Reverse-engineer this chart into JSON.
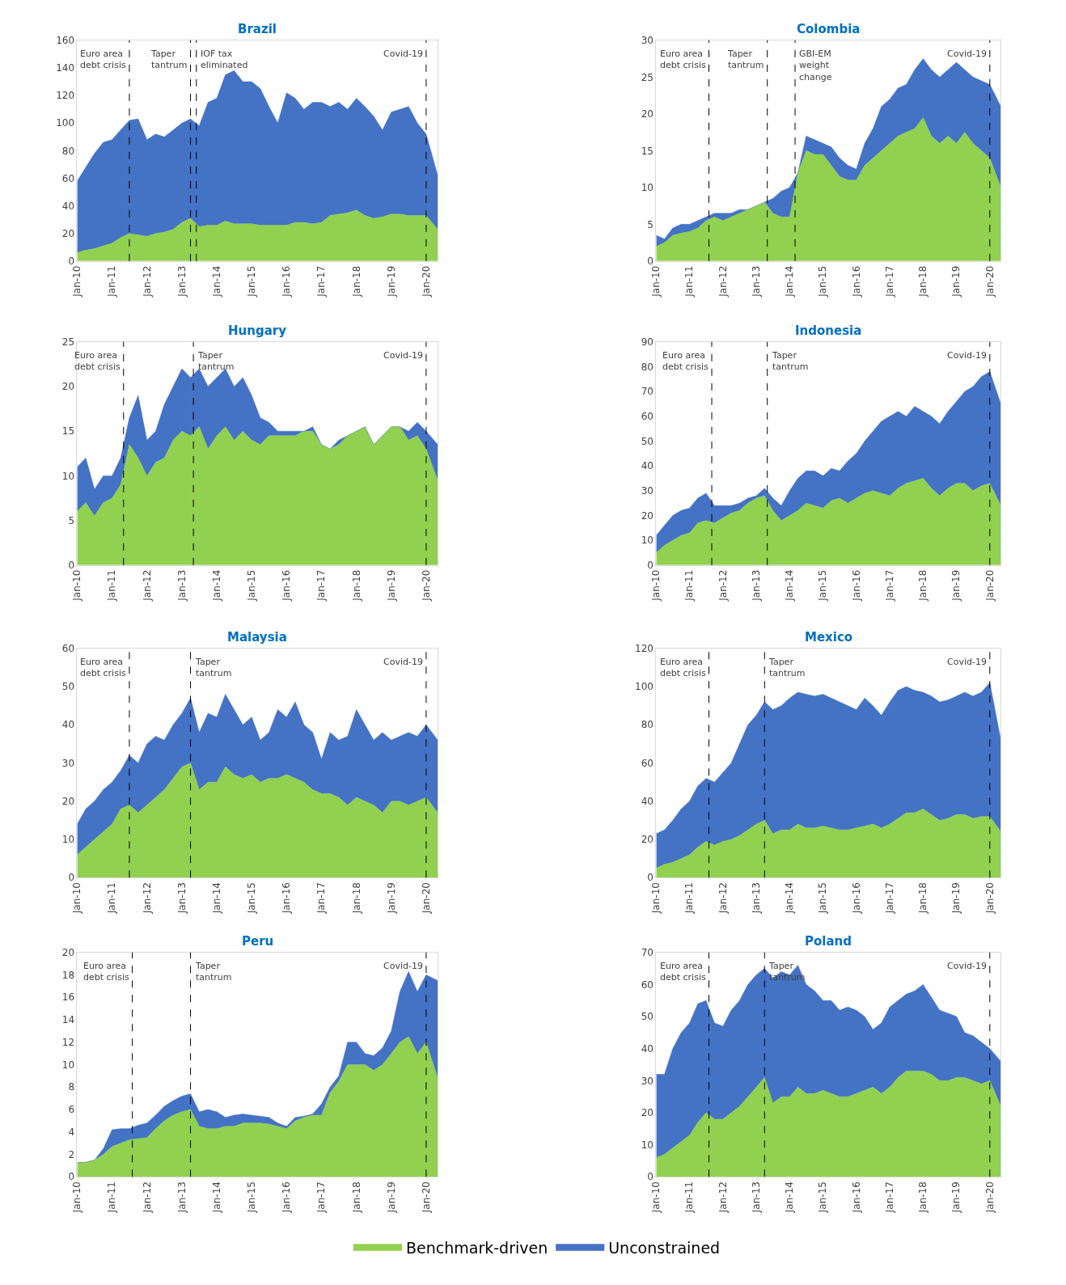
{
  "chart_data": [
    {
      "type": "area",
      "title": "Brazil",
      "stacked": true,
      "legend": "bottom",
      "xlim": [
        "2010-01",
        "2020-05"
      ],
      "ylim": [
        0,
        160
      ],
      "yticks": [
        0,
        20,
        40,
        60,
        80,
        100,
        120,
        140,
        160
      ],
      "xticks": [
        {
          "value": "2010-01",
          "label": "Jan-10"
        },
        {
          "value": "2011-01",
          "label": "Jan-11"
        },
        {
          "value": "2012-01",
          "label": "Jan-12"
        },
        {
          "value": "2013-01",
          "label": "Jan-13"
        },
        {
          "value": "2014-01",
          "label": "Jan-14"
        },
        {
          "value": "2015-01",
          "label": "Jan-15"
        },
        {
          "value": "2016-01",
          "label": "Jan-16"
        },
        {
          "value": "2017-01",
          "label": "Jan-17"
        },
        {
          "value": "2018-01",
          "label": "Jan-18"
        },
        {
          "value": "2019-01",
          "label": "Jan-19"
        },
        {
          "value": "2020-01",
          "label": "Jan-20"
        }
      ],
      "x": [
        "2010-01",
        "2010-04",
        "2010-07",
        "2010-10",
        "2011-01",
        "2011-04",
        "2011-07",
        "2011-10",
        "2012-01",
        "2012-04",
        "2012-07",
        "2012-10",
        "2013-01",
        "2013-04",
        "2013-07",
        "2013-10",
        "2014-01",
        "2014-04",
        "2014-07",
        "2014-10",
        "2015-01",
        "2015-04",
        "2015-07",
        "2015-10",
        "2016-01",
        "2016-04",
        "2016-07",
        "2016-10",
        "2017-01",
        "2017-04",
        "2017-07",
        "2017-10",
        "2018-01",
        "2018-04",
        "2018-07",
        "2018-10",
        "2019-01",
        "2019-04",
        "2019-07",
        "2019-10",
        "2020-01",
        "2020-05"
      ],
      "series": [
        {
          "name": "Benchmark-driven",
          "color": "#92d050",
          "values": [
            6,
            8,
            9,
            11,
            13,
            17,
            20,
            19,
            18,
            20,
            21,
            23,
            28,
            31,
            25,
            26,
            26,
            29,
            27,
            27,
            27,
            26,
            26,
            26,
            26,
            28,
            28,
            27,
            28,
            33,
            34,
            35,
            37,
            33,
            31,
            32,
            34,
            34,
            33,
            33,
            33,
            23
          ]
        },
        {
          "name": "Unconstrained",
          "color": "#4472c4",
          "values": [
            52,
            60,
            69,
            75,
            75,
            78,
            82,
            84,
            70,
            72,
            69,
            72,
            72,
            72,
            73,
            89,
            92,
            106,
            111,
            103,
            103,
            99,
            86,
            74,
            96,
            90,
            82,
            88,
            87,
            79,
            81,
            75,
            81,
            79,
            74,
            63,
            74,
            76,
            79,
            67,
            59,
            39
          ]
        }
      ],
      "ref_lines": [
        {
          "axis": "x",
          "value": "2011-07",
          "label": "Euro area\ndebt crisis",
          "color": "#000000",
          "line_style": "dashed"
        },
        {
          "axis": "x",
          "value": "2013-04",
          "label": "Taper\ntantrum",
          "color": "#000000",
          "line_style": "dashed"
        },
        {
          "axis": "x",
          "value": "2013-06",
          "label": "IOF tax\neliminated",
          "color": "#000000",
          "line_style": "dashed"
        },
        {
          "axis": "x",
          "value": "2020-01",
          "label": "Covid-19",
          "color": "#000000",
          "line_style": "dashed"
        }
      ]
    },
    {
      "type": "area",
      "title": "Colombia",
      "stacked": true,
      "xlim": [
        "2010-01",
        "2020-05"
      ],
      "ylim": [
        0,
        30
      ],
      "yticks": [
        0,
        5,
        10,
        15,
        20,
        25,
        30
      ],
      "xticks": [
        {
          "value": "2010-01",
          "label": "Jan-10"
        },
        {
          "value": "2011-01",
          "label": "Jan-11"
        },
        {
          "value": "2012-01",
          "label": "Jan-12"
        },
        {
          "value": "2013-01",
          "label": "Jan-13"
        },
        {
          "value": "2014-01",
          "label": "Jan-14"
        },
        {
          "value": "2015-01",
          "label": "Jan-15"
        },
        {
          "value": "2016-01",
          "label": "Jan-16"
        },
        {
          "value": "2017-01",
          "label": "Jan-17"
        },
        {
          "value": "2018-01",
          "label": "Jan-18"
        },
        {
          "value": "2019-01",
          "label": "Jan-19"
        },
        {
          "value": "2020-01",
          "label": "Jan-20"
        }
      ],
      "x": [
        "2010-01",
        "2010-04",
        "2010-07",
        "2010-10",
        "2011-01",
        "2011-04",
        "2011-07",
        "2011-10",
        "2012-01",
        "2012-04",
        "2012-07",
        "2012-10",
        "2013-01",
        "2013-04",
        "2013-07",
        "2013-10",
        "2014-01",
        "2014-04",
        "2014-07",
        "2014-10",
        "2015-01",
        "2015-04",
        "2015-07",
        "2015-10",
        "2016-01",
        "2016-04",
        "2016-07",
        "2016-10",
        "2017-01",
        "2017-04",
        "2017-07",
        "2017-10",
        "2018-01",
        "2018-04",
        "2018-07",
        "2018-10",
        "2019-01",
        "2019-04",
        "2019-07",
        "2019-10",
        "2020-01",
        "2020-05"
      ],
      "series": [
        {
          "color": "#92d050",
          "values": [
            2,
            2.5,
            3.5,
            3.8,
            4,
            4.5,
            5.5,
            6,
            5.5,
            6,
            6.5,
            7,
            7.5,
            8,
            6.5,
            6,
            6,
            12,
            15,
            14.5,
            14.5,
            13,
            11.5,
            11,
            11,
            13,
            14,
            15,
            16,
            17,
            17.5,
            18,
            19.5,
            17,
            16,
            17,
            16,
            17.5,
            16,
            15,
            14,
            10
          ]
        },
        {
          "color": "#4472c4",
          "values": [
            1.5,
            0.5,
            1,
            1.2,
            1,
            1,
            0.5,
            0.5,
            1,
            0.5,
            0.5,
            0,
            0,
            0,
            2,
            3.5,
            4,
            0,
            2,
            2,
            1.5,
            2.5,
            2.5,
            2,
            1.5,
            3,
            4,
            6,
            6,
            6.5,
            6.5,
            8,
            8,
            9,
            9,
            9,
            11,
            8.5,
            9,
            9.5,
            10,
            11
          ]
        }
      ],
      "ref_lines": [
        {
          "axis": "x",
          "value": "2011-08",
          "label": "Euro area\ndebt crisis",
          "color": "#000000",
          "line_style": "dashed"
        },
        {
          "axis": "x",
          "value": "2013-05",
          "label": "Taper\ntantrum",
          "color": "#000000",
          "line_style": "dashed"
        },
        {
          "axis": "x",
          "value": "2014-03",
          "label": "GBI-EM\nweight\nchange",
          "color": "#000000",
          "line_style": "dashed"
        },
        {
          "axis": "x",
          "value": "2020-01",
          "label": "Covid-19",
          "color": "#000000",
          "line_style": "dashed"
        }
      ]
    },
    {
      "type": "area",
      "title": "Hungary",
      "stacked": true,
      "xlim": [
        "2010-01",
        "2020-05"
      ],
      "ylim": [
        0,
        25
      ],
      "yticks": [
        0,
        5,
        10,
        15,
        20,
        25
      ],
      "xticks": [
        {
          "value": "2010-01",
          "label": "Jan-10"
        },
        {
          "value": "2011-01",
          "label": "Jan-11"
        },
        {
          "value": "2012-01",
          "label": "Jan-12"
        },
        {
          "value": "2013-01",
          "label": "Jan-13"
        },
        {
          "value": "2014-01",
          "label": "Jan-14"
        },
        {
          "value": "2015-01",
          "label": "Jan-15"
        },
        {
          "value": "2016-01",
          "label": "Jan-16"
        },
        {
          "value": "2017-01",
          "label": "Jan-17"
        },
        {
          "value": "2018-01",
          "label": "Jan-18"
        },
        {
          "value": "2019-01",
          "label": "Jan-19"
        },
        {
          "value": "2020-01",
          "label": "Jan-20"
        }
      ],
      "x": [
        "2010-01",
        "2010-04",
        "2010-07",
        "2010-10",
        "2011-01",
        "2011-04",
        "2011-07",
        "2011-10",
        "2012-01",
        "2012-04",
        "2012-07",
        "2012-10",
        "2013-01",
        "2013-04",
        "2013-07",
        "2013-10",
        "2014-01",
        "2014-04",
        "2014-07",
        "2014-10",
        "2015-01",
        "2015-04",
        "2015-07",
        "2015-10",
        "2016-01",
        "2016-04",
        "2016-07",
        "2016-10",
        "2017-01",
        "2017-04",
        "2017-07",
        "2017-10",
        "2018-01",
        "2018-04",
        "2018-07",
        "2018-10",
        "2019-01",
        "2019-04",
        "2019-07",
        "2019-10",
        "2020-01",
        "2020-05"
      ],
      "series": [
        {
          "color": "#92d050",
          "values": [
            6,
            7,
            5.5,
            7,
            7.5,
            9,
            13.5,
            12,
            10,
            11.5,
            12,
            14,
            15,
            14.5,
            15.5,
            13,
            14.5,
            15.5,
            14,
            15,
            14,
            13.5,
            14.5,
            14.5,
            14.5,
            14.5,
            15,
            15,
            13.5,
            13,
            13.5,
            14.5,
            15,
            15.5,
            13.5,
            14.5,
            15.5,
            15.5,
            14,
            14.5,
            13,
            9.5
          ]
        },
        {
          "color": "#4472c4",
          "values": [
            5,
            5,
            3,
            3,
            2.5,
            3,
            3,
            7,
            4,
            3.5,
            6,
            6,
            7,
            6.5,
            6.5,
            7,
            6.5,
            6.5,
            6,
            6,
            5,
            3,
            1.5,
            0.5,
            0.5,
            0.5,
            0,
            0.5,
            0,
            0,
            0.5,
            0,
            0,
            0,
            0,
            0,
            0,
            0,
            1,
            1.5,
            2,
            4
          ]
        }
      ],
      "ref_lines": [
        {
          "axis": "x",
          "value": "2011-05",
          "label": "Euro area\ndebt crisis",
          "color": "#000000",
          "line_style": "dashed"
        },
        {
          "axis": "x",
          "value": "2013-05",
          "label": "Taper\ntantrum",
          "color": "#000000",
          "line_style": "dashed"
        },
        {
          "axis": "x",
          "value": "2020-01",
          "label": "Covid-19",
          "color": "#000000",
          "line_style": "dashed"
        }
      ]
    },
    {
      "type": "area",
      "title": "Indonesia",
      "stacked": true,
      "xlim": [
        "2010-01",
        "2020-05"
      ],
      "ylim": [
        0,
        90
      ],
      "yticks": [
        0,
        10,
        20,
        30,
        40,
        50,
        60,
        70,
        80,
        90
      ],
      "xticks": [
        {
          "value": "2010-01",
          "label": "Jan-10"
        },
        {
          "value": "2011-01",
          "label": "Jan-11"
        },
        {
          "value": "2012-01",
          "label": "Jan-12"
        },
        {
          "value": "2013-01",
          "label": "Jan-13"
        },
        {
          "value": "2014-01",
          "label": "Jan-14"
        },
        {
          "value": "2015-01",
          "label": "Jan-15"
        },
        {
          "value": "2016-01",
          "label": "Jan-16"
        },
        {
          "value": "2017-01",
          "label": "Jan-17"
        },
        {
          "value": "2018-01",
          "label": "Jan-18"
        },
        {
          "value": "2019-01",
          "label": "Jan-19"
        },
        {
          "value": "2020-01",
          "label": "Jan-20"
        }
      ],
      "x": [
        "2010-01",
        "2010-04",
        "2010-07",
        "2010-10",
        "2011-01",
        "2011-04",
        "2011-07",
        "2011-10",
        "2012-01",
        "2012-04",
        "2012-07",
        "2012-10",
        "2013-01",
        "2013-04",
        "2013-07",
        "2013-10",
        "2014-01",
        "2014-04",
        "2014-07",
        "2014-10",
        "2015-01",
        "2015-04",
        "2015-07",
        "2015-10",
        "2016-01",
        "2016-04",
        "2016-07",
        "2016-10",
        "2017-01",
        "2017-04",
        "2017-07",
        "2017-10",
        "2018-01",
        "2018-04",
        "2018-07",
        "2018-10",
        "2019-01",
        "2019-04",
        "2019-07",
        "2019-10",
        "2020-01",
        "2020-05"
      ],
      "series": [
        {
          "color": "#92d050",
          "values": [
            5,
            8,
            10,
            12,
            13,
            17,
            18,
            17,
            19,
            21,
            22,
            25,
            27,
            28,
            22,
            18,
            20,
            22,
            25,
            24,
            23,
            26,
            27,
            25,
            27,
            29,
            30,
            29,
            28,
            31,
            33,
            34,
            35,
            31,
            28,
            31,
            33,
            33,
            30,
            32,
            33,
            24
          ]
        },
        {
          "color": "#4472c4",
          "values": [
            7,
            8,
            10,
            10,
            10,
            10,
            11,
            7,
            5,
            3,
            3,
            2,
            1,
            3,
            5,
            6,
            10,
            13,
            13,
            14,
            13,
            13,
            11,
            17,
            18,
            21,
            24,
            29,
            32,
            31,
            27,
            30,
            27,
            29,
            29,
            31,
            33,
            37,
            42,
            44,
            45,
            41
          ]
        }
      ],
      "ref_lines": [
        {
          "axis": "x",
          "value": "2011-09",
          "label": "Euro area\ndebt crisis",
          "color": "#000000",
          "line_style": "dashed"
        },
        {
          "axis": "x",
          "value": "2013-05",
          "label": "Taper\ntantrum",
          "color": "#000000",
          "line_style": "dashed"
        },
        {
          "axis": "x",
          "value": "2020-01",
          "label": "Covid-19",
          "color": "#000000",
          "line_style": "dashed"
        }
      ]
    },
    {
      "type": "area",
      "title": "Malaysia",
      "stacked": true,
      "xlim": [
        "2010-01",
        "2020-05"
      ],
      "ylim": [
        0,
        60
      ],
      "yticks": [
        0,
        10,
        20,
        30,
        40,
        50,
        60
      ],
      "xticks": [
        {
          "value": "2010-01",
          "label": "Jan-10"
        },
        {
          "value": "2011-01",
          "label": "Jan-11"
        },
        {
          "value": "2012-01",
          "label": "Jan-12"
        },
        {
          "value": "2013-01",
          "label": "Jan-13"
        },
        {
          "value": "2014-01",
          "label": "Jan-14"
        },
        {
          "value": "2015-01",
          "label": "Jan-15"
        },
        {
          "value": "2016-01",
          "label": "Jan-16"
        },
        {
          "value": "2017-01",
          "label": "Jan-17"
        },
        {
          "value": "2018-01",
          "label": "Jan-18"
        },
        {
          "value": "2019-01",
          "label": "Jan-19"
        },
        {
          "value": "2020-01",
          "label": "Jan-20"
        }
      ],
      "x": [
        "2010-01",
        "2010-04",
        "2010-07",
        "2010-10",
        "2011-01",
        "2011-04",
        "2011-07",
        "2011-10",
        "2012-01",
        "2012-04",
        "2012-07",
        "2012-10",
        "2013-01",
        "2013-04",
        "2013-07",
        "2013-10",
        "2014-01",
        "2014-04",
        "2014-07",
        "2014-10",
        "2015-01",
        "2015-04",
        "2015-07",
        "2015-10",
        "2016-01",
        "2016-04",
        "2016-07",
        "2016-10",
        "2017-01",
        "2017-04",
        "2017-07",
        "2017-10",
        "2018-01",
        "2018-04",
        "2018-07",
        "2018-10",
        "2019-01",
        "2019-04",
        "2019-07",
        "2019-10",
        "2020-01",
        "2020-05"
      ],
      "series": [
        {
          "color": "#92d050",
          "values": [
            6,
            8,
            10,
            12,
            14,
            18,
            19,
            17,
            19,
            21,
            23,
            26,
            29,
            30,
            23,
            25,
            25,
            29,
            27,
            26,
            27,
            25,
            26,
            26,
            27,
            26,
            25,
            23,
            22,
            22,
            21,
            19,
            21,
            20,
            19,
            17,
            20,
            20,
            19,
            20,
            21,
            17
          ]
        },
        {
          "color": "#4472c4",
          "values": [
            8,
            10,
            10,
            11,
            11,
            10,
            13,
            13,
            16,
            16,
            13,
            14,
            14,
            17,
            15,
            18,
            17,
            19,
            17,
            14,
            15,
            11,
            12,
            18,
            15,
            20,
            15,
            15,
            9,
            16,
            15,
            18,
            23,
            20,
            17,
            21,
            16,
            17,
            19,
            17,
            19,
            19
          ]
        }
      ],
      "ref_lines": [
        {
          "axis": "x",
          "value": "2011-07",
          "label": "Euro area\ndebt crisis",
          "color": "#000000",
          "line_style": "dashed"
        },
        {
          "axis": "x",
          "value": "2013-04",
          "label": "Taper\ntantrum",
          "color": "#000000",
          "line_style": "dashed"
        },
        {
          "axis": "x",
          "value": "2020-01",
          "label": "Covid-19",
          "color": "#000000",
          "line_style": "dashed"
        }
      ]
    },
    {
      "type": "area",
      "title": "Mexico",
      "stacked": true,
      "xlim": [
        "2010-01",
        "2020-05"
      ],
      "ylim": [
        0,
        120
      ],
      "yticks": [
        0,
        20,
        40,
        60,
        80,
        100,
        120
      ],
      "xticks": [
        {
          "value": "2010-01",
          "label": "Jan-10"
        },
        {
          "value": "2011-01",
          "label": "Jan-11"
        },
        {
          "value": "2012-01",
          "label": "Jan-12"
        },
        {
          "value": "2013-01",
          "label": "Jan-13"
        },
        {
          "value": "2014-01",
          "label": "Jan-14"
        },
        {
          "value": "2015-01",
          "label": "Jan-15"
        },
        {
          "value": "2016-01",
          "label": "Jan-16"
        },
        {
          "value": "2017-01",
          "label": "Jan-17"
        },
        {
          "value": "2018-01",
          "label": "Jan-18"
        },
        {
          "value": "2019-01",
          "label": "Jan-19"
        },
        {
          "value": "2020-01",
          "label": "Jan-20"
        }
      ],
      "x": [
        "2010-01",
        "2010-04",
        "2010-07",
        "2010-10",
        "2011-01",
        "2011-04",
        "2011-07",
        "2011-10",
        "2012-01",
        "2012-04",
        "2012-07",
        "2012-10",
        "2013-01",
        "2013-04",
        "2013-07",
        "2013-10",
        "2014-01",
        "2014-04",
        "2014-07",
        "2014-10",
        "2015-01",
        "2015-04",
        "2015-07",
        "2015-10",
        "2016-01",
        "2016-04",
        "2016-07",
        "2016-10",
        "2017-01",
        "2017-04",
        "2017-07",
        "2017-10",
        "2018-01",
        "2018-04",
        "2018-07",
        "2018-10",
        "2019-01",
        "2019-04",
        "2019-07",
        "2019-10",
        "2020-01",
        "2020-05"
      ],
      "series": [
        {
          "color": "#92d050",
          "values": [
            5,
            7,
            8,
            10,
            12,
            16,
            19,
            17,
            19,
            20,
            22,
            25,
            28,
            30,
            23,
            25,
            25,
            28,
            26,
            26,
            27,
            26,
            25,
            25,
            26,
            27,
            28,
            26,
            28,
            31,
            34,
            34,
            36,
            33,
            30,
            31,
            33,
            33,
            31,
            32,
            32,
            24
          ]
        },
        {
          "color": "#4472c4",
          "values": [
            18,
            18,
            22,
            26,
            28,
            32,
            33,
            33,
            36,
            40,
            48,
            55,
            57,
            62,
            65,
            65,
            69,
            69,
            70,
            69,
            69,
            68,
            67,
            65,
            62,
            67,
            62,
            59,
            64,
            67,
            66,
            64,
            61,
            62,
            62,
            62,
            62,
            64,
            64,
            65,
            70,
            48
          ]
        }
      ],
      "ref_lines": [
        {
          "axis": "x",
          "value": "2011-08",
          "label": "Euro area\ndebt crisis",
          "color": "#000000",
          "line_style": "dashed"
        },
        {
          "axis": "x",
          "value": "2013-04",
          "label": "Taper\ntantrum",
          "color": "#000000",
          "line_style": "dashed"
        },
        {
          "axis": "x",
          "value": "2020-01",
          "label": "Covid-19",
          "color": "#000000",
          "line_style": "dashed"
        }
      ]
    },
    {
      "type": "area",
      "title": "Peru",
      "stacked": true,
      "xlim": [
        "2010-01",
        "2020-05"
      ],
      "ylim": [
        0,
        20
      ],
      "yticks": [
        0,
        2,
        4,
        6,
        8,
        10,
        12,
        14,
        16,
        18,
        20
      ],
      "xticks": [
        {
          "value": "2010-01",
          "label": "Jan-10"
        },
        {
          "value": "2011-01",
          "label": "Jan-11"
        },
        {
          "value": "2012-01",
          "label": "Jan-12"
        },
        {
          "value": "2013-01",
          "label": "Jan-13"
        },
        {
          "value": "2014-01",
          "label": "Jan-14"
        },
        {
          "value": "2015-01",
          "label": "Jan-15"
        },
        {
          "value": "2016-01",
          "label": "Jan-16"
        },
        {
          "value": "2017-01",
          "label": "Jan-17"
        },
        {
          "value": "2018-01",
          "label": "Jan-18"
        },
        {
          "value": "2019-01",
          "label": "Jan-19"
        },
        {
          "value": "2020-01",
          "label": "Jan-20"
        }
      ],
      "x": [
        "2010-01",
        "2010-04",
        "2010-07",
        "2010-10",
        "2011-01",
        "2011-04",
        "2011-07",
        "2011-10",
        "2012-01",
        "2012-04",
        "2012-07",
        "2012-10",
        "2013-01",
        "2013-04",
        "2013-07",
        "2013-10",
        "2014-01",
        "2014-04",
        "2014-07",
        "2014-10",
        "2015-01",
        "2015-04",
        "2015-07",
        "2015-10",
        "2016-01",
        "2016-04",
        "2016-07",
        "2016-10",
        "2017-01",
        "2017-04",
        "2017-07",
        "2017-10",
        "2018-01",
        "2018-04",
        "2018-07",
        "2018-10",
        "2019-01",
        "2019-04",
        "2019-07",
        "2019-10",
        "2020-01",
        "2020-05"
      ],
      "series": [
        {
          "color": "#92d050",
          "values": [
            1.3,
            1.3,
            1.5,
            2,
            2.7,
            3,
            3.3,
            3.4,
            3.5,
            4.3,
            5,
            5.5,
            5.8,
            6,
            4.5,
            4.3,
            4.3,
            4.5,
            4.5,
            4.8,
            4.8,
            4.8,
            4.7,
            4.5,
            4.3,
            5,
            5.3,
            5.5,
            5.5,
            7.5,
            8.5,
            10,
            10,
            10,
            9.5,
            10,
            11,
            12,
            12.5,
            11,
            12,
            8.8
          ]
        },
        {
          "color": "#4472c4",
          "values": [
            0,
            0,
            0,
            0.5,
            1.5,
            1.3,
            1,
            1.2,
            1.3,
            1.2,
            1.3,
            1.3,
            1.4,
            1.4,
            1.3,
            1.7,
            1.5,
            0.8,
            1,
            0.8,
            0.7,
            0.6,
            0.6,
            0.3,
            0.2,
            0.3,
            0.1,
            0.1,
            1,
            0.5,
            0.5,
            2,
            2,
            1,
            1.3,
            1.5,
            2,
            4.5,
            5.8,
            5.5,
            6,
            8.7
          ]
        }
      ],
      "ref_lines": [
        {
          "axis": "x",
          "value": "2011-08",
          "label": "Euro area\ndebt crisis",
          "color": "#000000",
          "line_style": "dashed"
        },
        {
          "axis": "x",
          "value": "2013-04",
          "label": "Taper\ntantrum",
          "color": "#000000",
          "line_style": "dashed"
        },
        {
          "axis": "x",
          "value": "2020-01",
          "label": "Covid-19",
          "color": "#000000",
          "line_style": "dashed"
        }
      ]
    },
    {
      "type": "area",
      "title": "Poland",
      "stacked": true,
      "xlim": [
        "2010-01",
        "2020-05"
      ],
      "ylim": [
        0,
        70
      ],
      "yticks": [
        0,
        10,
        20,
        30,
        40,
        50,
        60,
        70
      ],
      "xticks": [
        {
          "value": "2010-01",
          "label": "Jan-10"
        },
        {
          "value": "2011-01",
          "label": "Jan-11"
        },
        {
          "value": "2012-01",
          "label": "Jan-12"
        },
        {
          "value": "2013-01",
          "label": "Jan-13"
        },
        {
          "value": "2014-01",
          "label": "Jan-14"
        },
        {
          "value": "2015-01",
          "label": "Jan-15"
        },
        {
          "value": "2016-01",
          "label": "Jan-16"
        },
        {
          "value": "2017-01",
          "label": "Jan-17"
        },
        {
          "value": "2018-01",
          "label": "Jan-18"
        },
        {
          "value": "2019-01",
          "label": "Jan-19"
        },
        {
          "value": "2020-01",
          "label": "Jan-20"
        }
      ],
      "x": [
        "2010-01",
        "2010-04",
        "2010-07",
        "2010-10",
        "2011-01",
        "2011-04",
        "2011-07",
        "2011-10",
        "2012-01",
        "2012-04",
        "2012-07",
        "2012-10",
        "2013-01",
        "2013-04",
        "2013-07",
        "2013-10",
        "2014-01",
        "2014-04",
        "2014-07",
        "2014-10",
        "2015-01",
        "2015-04",
        "2015-07",
        "2015-10",
        "2016-01",
        "2016-04",
        "2016-07",
        "2016-10",
        "2017-01",
        "2017-04",
        "2017-07",
        "2017-10",
        "2018-01",
        "2018-04",
        "2018-07",
        "2018-10",
        "2019-01",
        "2019-04",
        "2019-07",
        "2019-10",
        "2020-01",
        "2020-05"
      ],
      "series": [
        {
          "color": "#92d050",
          "values": [
            6,
            7,
            9,
            11,
            13,
            17,
            20,
            18,
            18,
            20,
            22,
            25,
            28,
            31,
            23,
            25,
            25,
            28,
            26,
            26,
            27,
            26,
            25,
            25,
            26,
            27,
            28,
            26,
            28,
            31,
            33,
            33,
            33,
            32,
            30,
            30,
            31,
            31,
            30,
            29,
            30,
            22
          ]
        },
        {
          "color": "#4472c4",
          "values": [
            26,
            25,
            31,
            34,
            35,
            37,
            35,
            30,
            29,
            32,
            33,
            35,
            35,
            34,
            39,
            39,
            38,
            38,
            34,
            32,
            28,
            29,
            27,
            28,
            26,
            23,
            18,
            22,
            25,
            24,
            24,
            25,
            27,
            24,
            22,
            21,
            19,
            14,
            14,
            13,
            10,
            14
          ]
        }
      ],
      "ref_lines": [
        {
          "axis": "x",
          "value": "2011-08",
          "label": "Euro area\ndebt crisis",
          "color": "#000000",
          "line_style": "dashed"
        },
        {
          "axis": "x",
          "value": "2013-04",
          "label": "Taper\ntantrum",
          "color": "#000000",
          "line_style": "dashed"
        },
        {
          "axis": "x",
          "value": "2020-01",
          "label": "Covid-19",
          "color": "#000000",
          "line_style": "dashed"
        }
      ]
    }
  ]
}
